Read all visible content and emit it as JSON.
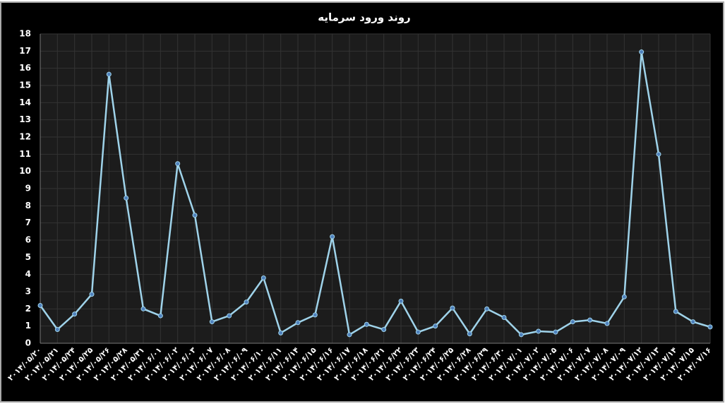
{
  "chart_data": {
    "type": "line",
    "title": "روند ورود سرمایه",
    "categories": [
      "۲۰۱۴/۰۵/۲۰",
      "۲۰۱۴/۰۵/۲۱",
      "۲۰۱۴/۰۵/۲۴",
      "۲۰۱۴/۰۵/۲۵",
      "۲۰۱۴/۰۵/۲۶",
      "۲۰۱۴/۰۵/۲۸",
      "۲۰۱۴/۰۵/۳۱",
      "۲۰۱۴/۰۶/۰۱",
      "۲۰۱۴/۰۶/۰۲",
      "۲۰۱۴/۰۶/۰۳",
      "۲۰۱۴/۰۶/۰۷",
      "۲۰۱۴/۰۶/۰۸",
      "۲۰۱۴/۰۶/۰۹",
      "۲۰۱۴/۰۶/۱۰",
      "۲۰۱۴/۰۶/۱۱",
      "۲۰۱۴/۰۶/۱۴",
      "۲۰۱۴/۰۶/۱۵",
      "۲۰۱۴/۰۶/۱۶",
      "۲۰۱۴/۰۶/۱۷",
      "۲۰۱۴/۰۶/۱۸",
      "۲۰۱۴/۰۶/۲۱",
      "۲۰۱۴/۰۶/۲۲",
      "۲۰۱۴/۰۶/۲۳",
      "۲۰۱۴/۰۶/۲۴",
      "۲۰۱۴/۰۶/۲۵",
      "۲۰۱۴/۰۶/۲۸",
      "۲۰۱۴/۰۶/۲۹",
      "۲۰۱۴/۰۶/۳۰",
      "۲۰۱۴/۰۷/۰۱",
      "۲۰۱۴/۰۷/۰۲",
      "۲۰۱۴/۰۷/۰۵",
      "۲۰۱۴/۰۷/۰۶",
      "۲۰۱۴/۰۷/۰۷",
      "۲۰۱۴/۰۷/۰۸",
      "۲۰۱۴/۰۷/۰۹",
      "۲۰۱۴/۰۷/۱۲",
      "۲۰۱۴/۰۷/۱۳",
      "۲۰۱۴/۰۷/۱۴",
      "۲۰۱۴/۰۷/۱۵",
      "۲۰۱۴/۰۷/۱۶"
    ],
    "values": [
      2.2,
      0.8,
      1.7,
      2.85,
      15.65,
      8.45,
      2.0,
      1.6,
      10.45,
      7.45,
      1.25,
      1.6,
      2.4,
      3.8,
      0.6,
      1.2,
      1.65,
      6.2,
      0.5,
      1.1,
      0.8,
      2.45,
      0.65,
      1.0,
      2.05,
      0.55,
      2.0,
      1.5,
      0.5,
      0.7,
      0.65,
      1.25,
      1.35,
      1.15,
      2.7,
      16.95,
      11.0,
      1.85,
      1.25,
      0.95
    ],
    "color": "#9fd3ea",
    "ylim": [
      0,
      18
    ],
    "yticks": [
      0,
      1,
      2,
      3,
      4,
      5,
      6,
      7,
      8,
      9,
      10,
      11,
      12,
      13,
      14,
      15,
      16,
      17,
      18
    ],
    "grid": true
  }
}
